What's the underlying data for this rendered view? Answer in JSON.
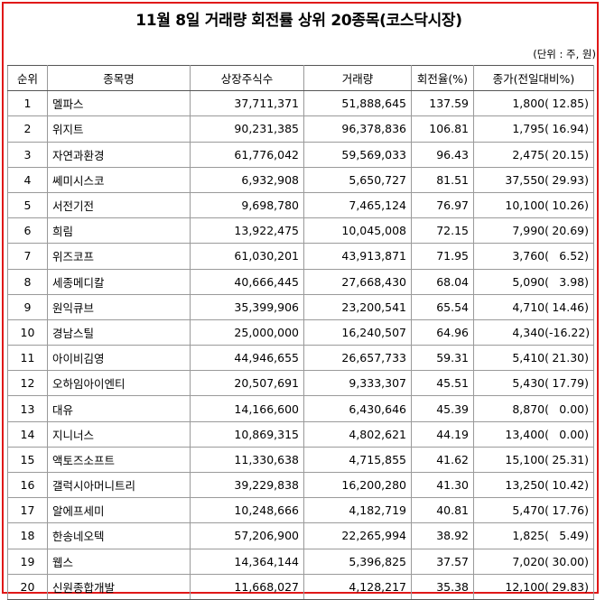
{
  "title": "11월 8일 거래량 회전률 상위 20종목(코스닥시장)",
  "unit_note": "(단위 : 주, 원)",
  "columns": [
    "순위",
    "종목명",
    "상장주식수",
    "거래량",
    "회전율(%)",
    "종가(전일대비%)"
  ],
  "rows": [
    {
      "rank": "1",
      "name": "멜파스",
      "shares": "37,711,371",
      "volume": "51,888,645",
      "turnover": "137.59",
      "price": "1,800(",
      "change": "12.85)"
    },
    {
      "rank": "2",
      "name": "위지트",
      "shares": "90,231,385",
      "volume": "96,378,836",
      "turnover": "106.81",
      "price": "1,795(",
      "change": "16.94)"
    },
    {
      "rank": "3",
      "name": "자연과환경",
      "shares": "61,776,042",
      "volume": "59,569,033",
      "turnover": "96.43",
      "price": "2,475(",
      "change": "20.15)"
    },
    {
      "rank": "4",
      "name": "쎄미시스코",
      "shares": "6,932,908",
      "volume": "5,650,727",
      "turnover": "81.51",
      "price": "37,550(",
      "change": "29.93)"
    },
    {
      "rank": "5",
      "name": "서전기전",
      "shares": "9,698,780",
      "volume": "7,465,124",
      "turnover": "76.97",
      "price": "10,100(",
      "change": "10.26)"
    },
    {
      "rank": "6",
      "name": "희림",
      "shares": "13,922,475",
      "volume": "10,045,008",
      "turnover": "72.15",
      "price": "7,990(",
      "change": "20.69)"
    },
    {
      "rank": "7",
      "name": "위즈코프",
      "shares": "61,030,201",
      "volume": "43,913,871",
      "turnover": "71.95",
      "price": "3,760(",
      "change": "6.52)"
    },
    {
      "rank": "8",
      "name": "세종메디칼",
      "shares": "40,666,445",
      "volume": "27,668,430",
      "turnover": "68.04",
      "price": "5,090(",
      "change": "3.98)"
    },
    {
      "rank": "9",
      "name": "원익큐브",
      "shares": "35,399,906",
      "volume": "23,200,541",
      "turnover": "65.54",
      "price": "4,710(",
      "change": "14.46)"
    },
    {
      "rank": "10",
      "name": "경남스틸",
      "shares": "25,000,000",
      "volume": "16,240,507",
      "turnover": "64.96",
      "price": "4,340(",
      "change": "-16.22)"
    },
    {
      "rank": "11",
      "name": "아이비김영",
      "shares": "44,946,655",
      "volume": "26,657,733",
      "turnover": "59.31",
      "price": "5,410(",
      "change": "21.30)"
    },
    {
      "rank": "12",
      "name": "오하임아이엔티",
      "shares": "20,507,691",
      "volume": "9,333,307",
      "turnover": "45.51",
      "price": "5,430(",
      "change": "17.79)"
    },
    {
      "rank": "13",
      "name": "대유",
      "shares": "14,166,600",
      "volume": "6,430,646",
      "turnover": "45.39",
      "price": "8,870(",
      "change": "0.00)"
    },
    {
      "rank": "14",
      "name": "지니너스",
      "shares": "10,869,315",
      "volume": "4,802,621",
      "turnover": "44.19",
      "price": "13,400(",
      "change": "0.00)"
    },
    {
      "rank": "15",
      "name": "액토즈소프트",
      "shares": "11,330,638",
      "volume": "4,715,855",
      "turnover": "41.62",
      "price": "15,100(",
      "change": "25.31)"
    },
    {
      "rank": "16",
      "name": "갤럭시아머니트리",
      "shares": "39,229,838",
      "volume": "16,200,280",
      "turnover": "41.30",
      "price": "13,250(",
      "change": "10.42)"
    },
    {
      "rank": "17",
      "name": "알에프세미",
      "shares": "10,248,666",
      "volume": "4,182,719",
      "turnover": "40.81",
      "price": "5,470(",
      "change": "17.76)"
    },
    {
      "rank": "18",
      "name": "한송네오텍",
      "shares": "57,206,900",
      "volume": "22,265,994",
      "turnover": "38.92",
      "price": "1,825(",
      "change": "5.49)"
    },
    {
      "rank": "19",
      "name": "웹스",
      "shares": "14,364,144",
      "volume": "5,396,825",
      "turnover": "37.57",
      "price": "7,020(",
      "change": "30.00)"
    },
    {
      "rank": "20",
      "name": "신원종합개발",
      "shares": "11,668,027",
      "volume": "4,128,217",
      "turnover": "35.38",
      "price": "12,100(",
      "change": "29.83)"
    }
  ]
}
